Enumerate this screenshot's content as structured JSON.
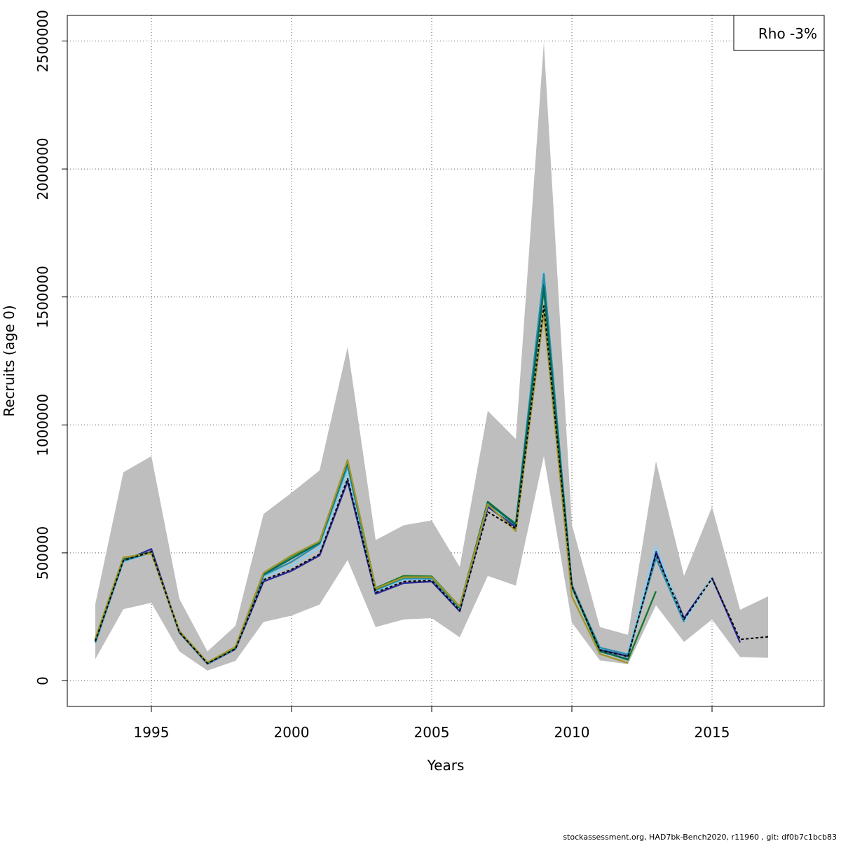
{
  "chart_data": {
    "type": "line",
    "xlabel": "Years",
    "ylabel": "Recruits (age 0)",
    "xlim": [
      1992,
      2019
    ],
    "ylim": [
      -100000,
      2600000
    ],
    "x_ticks": [
      1995,
      2000,
      2005,
      2010,
      2015
    ],
    "x_tick_labels": [
      "1995",
      "2000",
      "2005",
      "2010",
      "2015"
    ],
    "y_ticks": [
      0,
      500000,
      1000000,
      1500000,
      2000000,
      2500000
    ],
    "y_tick_labels": [
      "0",
      "500000",
      "1000000",
      "1500000",
      "2000000",
      "2500000"
    ],
    "grid": true,
    "legend": {
      "position": "top-right",
      "text": "Rho -3%"
    },
    "band": {
      "x": [
        1993,
        1994,
        1995,
        1996,
        1997,
        1998,
        1999,
        2000,
        2001,
        2002,
        2003,
        2004,
        2005,
        2006,
        2007,
        2008,
        2009,
        2010,
        2011,
        2012,
        2013,
        2014,
        2015,
        2016,
        2017
      ],
      "upper": [
        300000,
        815000,
        878000,
        320000,
        115000,
        215000,
        652000,
        735000,
        822000,
        1305000,
        550000,
        608000,
        627000,
        445000,
        1055000,
        945000,
        2495000,
        610000,
        210000,
        180000,
        858000,
        410000,
        680000,
        278000,
        330000
      ],
      "lower": [
        85000,
        280000,
        305000,
        115000,
        40000,
        78000,
        230000,
        255000,
        298000,
        472000,
        210000,
        240000,
        245000,
        170000,
        410000,
        372000,
        878000,
        228000,
        80000,
        65000,
        295000,
        152000,
        240000,
        93000,
        90000
      ]
    },
    "series": [
      {
        "color": "#000000",
        "dashed": true,
        "x": [
          1993,
          1994,
          1995,
          1996,
          1997,
          1998,
          1999,
          2000,
          2001,
          2002,
          2003,
          2004,
          2005,
          2006,
          2007,
          2008,
          2009,
          2010,
          2011,
          2012,
          2013,
          2014,
          2015,
          2016,
          2017
        ],
        "y": [
          155000,
          470000,
          505000,
          190000,
          68000,
          125000,
          395000,
          435000,
          495000,
          790000,
          345000,
          388000,
          392000,
          275000,
          660000,
          595000,
          1465000,
          370000,
          120000,
          95000,
          495000,
          240000,
          400000,
          162000,
          172000
        ]
      },
      {
        "color": "#2a2a9c",
        "dashed": false,
        "x": [
          1993,
          1994,
          1995,
          1996,
          1997,
          1998,
          1999,
          2000,
          2001,
          2002,
          2003,
          2004,
          2005,
          2006,
          2007,
          2008,
          2009,
          2010,
          2011,
          2012,
          2013,
          2014,
          2015,
          2016
        ],
        "y": [
          150000,
          468000,
          515000,
          188000,
          66000,
          124000,
          388000,
          430000,
          490000,
          780000,
          340000,
          382000,
          388000,
          272000,
          680000,
          600000,
          1550000,
          375000,
          122000,
          96000,
          505000,
          245000,
          402000,
          150000
        ]
      },
      {
        "color": "#87ceeb",
        "dashed": false,
        "x": [
          1993,
          1994,
          1995,
          1996,
          1997,
          1998,
          1999,
          2000,
          2001,
          2002,
          2003,
          2004,
          2005,
          2006,
          2007,
          2008,
          2009,
          2010,
          2011,
          2012,
          2013,
          2014,
          2015
        ],
        "y": [
          152000,
          465000,
          500000,
          189000,
          67000,
          126000,
          405000,
          450000,
          520000,
          820000,
          352000,
          395000,
          398000,
          280000,
          690000,
          610000,
          1600000,
          372000,
          128000,
          105000,
          525000,
          230000,
          405000
        ]
      },
      {
        "color": "#2a8faa",
        "dashed": false,
        "x": [
          1993,
          1994,
          1995,
          1996,
          1997,
          1998,
          1999,
          2000,
          2001,
          2002,
          2003,
          2004,
          2005,
          2006,
          2007,
          2008,
          2009,
          2010,
          2011,
          2012,
          2013,
          2014
        ],
        "y": [
          150000,
          468000,
          502000,
          190000,
          68000,
          127000,
          412000,
          465000,
          535000,
          840000,
          355000,
          400000,
          400000,
          284000,
          693000,
          615000,
          1590000,
          370000,
          130000,
          103000,
          480000,
          230000
        ]
      },
      {
        "color": "#1a7a2a",
        "dashed": false,
        "x": [
          1993,
          1994,
          1995,
          1996,
          1997,
          1998,
          1999,
          2000,
          2001,
          2002,
          2003,
          2004,
          2005,
          2006,
          2007,
          2008,
          2009,
          2010,
          2011,
          2012,
          2013
        ],
        "y": [
          162000,
          480000,
          502000,
          192000,
          70000,
          130000,
          420000,
          487000,
          545000,
          860000,
          362000,
          410000,
          408000,
          290000,
          700000,
          612000,
          1530000,
          368000,
          118000,
          82000,
          350000
        ]
      },
      {
        "color": "#006b5c",
        "dashed": false,
        "x": [
          1993,
          1994,
          1995,
          1996,
          1997,
          1998,
          1999,
          2000,
          2001,
          2002,
          2003,
          2004,
          2005,
          2006,
          2007,
          2008,
          2009,
          2010,
          2011,
          2012
        ],
        "y": [
          158000,
          475000,
          500000,
          190000,
          69000,
          128000,
          416000,
          478000,
          540000,
          855000,
          358000,
          405000,
          405000,
          287000,
          697000,
          608000,
          1540000,
          368000,
          115000,
          85000
        ]
      },
      {
        "color": "#a0962a",
        "dashed": false,
        "x": [
          1993,
          1994,
          1995,
          1996,
          1997,
          1998,
          1999,
          2000,
          2001,
          2002,
          2003,
          2004,
          2005,
          2006,
          2007,
          2008,
          2009,
          2010,
          2011,
          2012
        ],
        "y": [
          165000,
          482000,
          498000,
          195000,
          72000,
          133000,
          422000,
          490000,
          545000,
          863000,
          360000,
          405000,
          405000,
          290000,
          690000,
          585000,
          1440000,
          330000,
          105000,
          70000
        ]
      }
    ]
  },
  "footer": {
    "text": "stockassessment.org, HAD7bk-Bench2020, r11960 , git: df0b7c1bcb83"
  }
}
